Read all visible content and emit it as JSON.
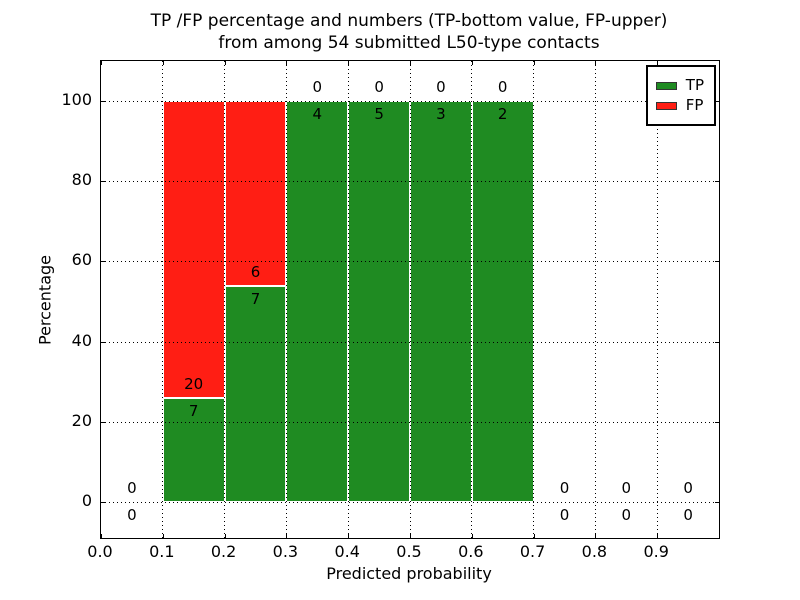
{
  "chart_data": {
    "type": "bar",
    "stacked": true,
    "title_line1": "TP /FP percentage and numbers (TP-bottom value, FP-upper)",
    "title_line2": "from among 54 submitted L50-type contacts",
    "xlabel": "Predicted probability",
    "ylabel": "Percentage",
    "xlim": [
      0.0,
      1.0
    ],
    "ylim": [
      -9,
      110
    ],
    "xticks": [
      0.0,
      0.1,
      0.2,
      0.3,
      0.4,
      0.5,
      0.6,
      0.7,
      0.8,
      0.9
    ],
    "xtick_labels": [
      "0.0",
      "0.1",
      "0.2",
      "0.3",
      "0.4",
      "0.5",
      "0.6",
      "0.7",
      "0.8",
      "0.9"
    ],
    "yticks": [
      0,
      20,
      40,
      60,
      80,
      100
    ],
    "ytick_labels": [
      "0",
      "20",
      "40",
      "60",
      "80",
      "100"
    ],
    "bin_width": 0.1,
    "bin_starts": [
      0.0,
      0.1,
      0.2,
      0.3,
      0.4,
      0.5,
      0.6,
      0.7,
      0.8,
      0.9
    ],
    "series": [
      {
        "name": "TP",
        "color": "#1f8b22",
        "counts": [
          0,
          7,
          7,
          4,
          5,
          3,
          2,
          0,
          0,
          0
        ]
      },
      {
        "name": "FP",
        "color": "#ff1e14",
        "counts": [
          0,
          20,
          6,
          0,
          0,
          0,
          0,
          0,
          0,
          0
        ]
      }
    ],
    "bars_are_percent_of_bin_total": true,
    "total_contacts": 54,
    "legend": [
      {
        "label": "TP",
        "color": "#1f8b22"
      },
      {
        "label": "FP",
        "color": "#ff1e14"
      }
    ],
    "legend_position": "upper right",
    "grid": "dotted"
  }
}
